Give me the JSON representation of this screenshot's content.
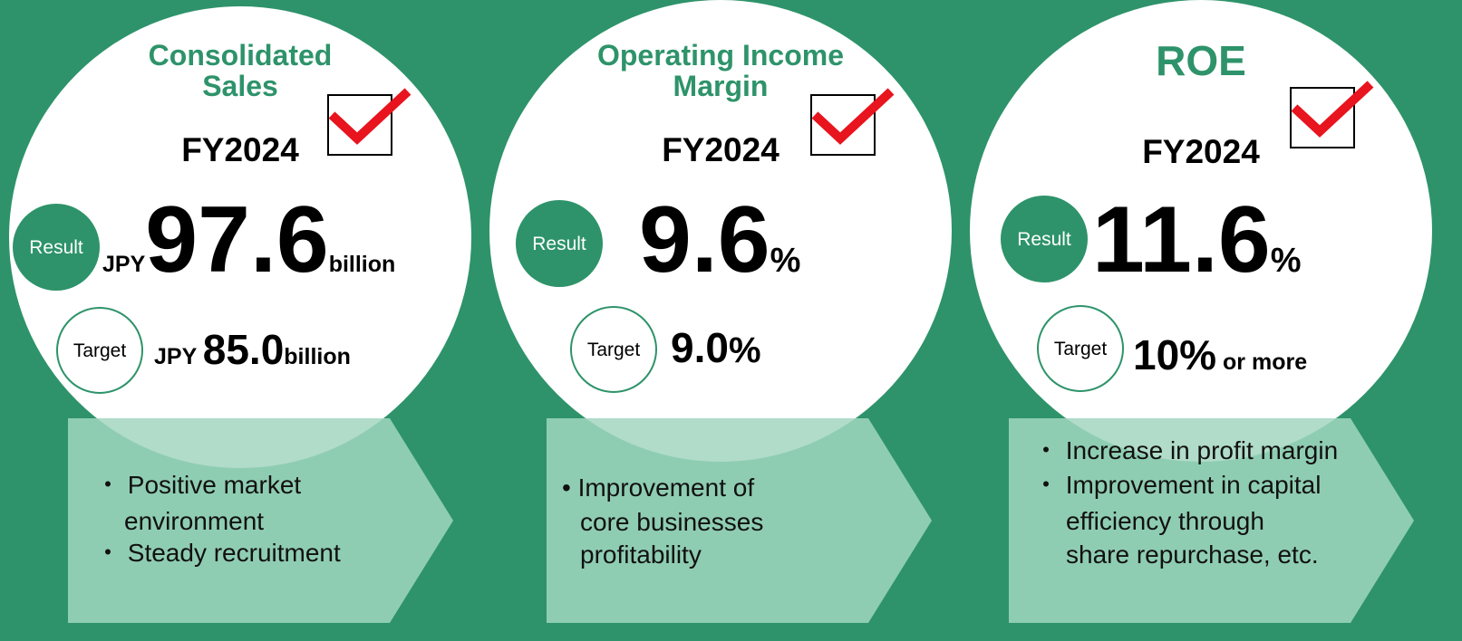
{
  "panels": [
    {
      "title": [
        "Consolidated",
        "Sales"
      ],
      "fy": "FY2024",
      "result": {
        "label": "Result",
        "prefix": "JPY",
        "value": "97.6",
        "unit": "billion"
      },
      "target": {
        "label": "Target",
        "prefix": "JPY ",
        "value": "85.0",
        "unit": "billion"
      },
      "bullets": [
        "・ Positive market",
        "environment",
        "・ Steady recruitment"
      ]
    },
    {
      "title": [
        "Operating Income",
        "Margin"
      ],
      "fy": "FY2024",
      "result": {
        "label": "Result",
        "value": "9.6",
        "unit": "%"
      },
      "target": {
        "label": "Target",
        "value": "9.0",
        "unit": "%"
      },
      "bullets": [
        "• Improvement of",
        "core businesses",
        "profitability"
      ]
    },
    {
      "title": [
        "ROE"
      ],
      "fy": "FY2024",
      "result": {
        "label": "Result",
        "value": "11.6",
        "unit": "%"
      },
      "target": {
        "label": "Target",
        "value": "10%",
        "unit": " or more"
      },
      "bullets": [
        "・ Increase in profit margin",
        "・ Improvement in capital",
        "efficiency through",
        "share repurchase, etc."
      ]
    }
  ]
}
